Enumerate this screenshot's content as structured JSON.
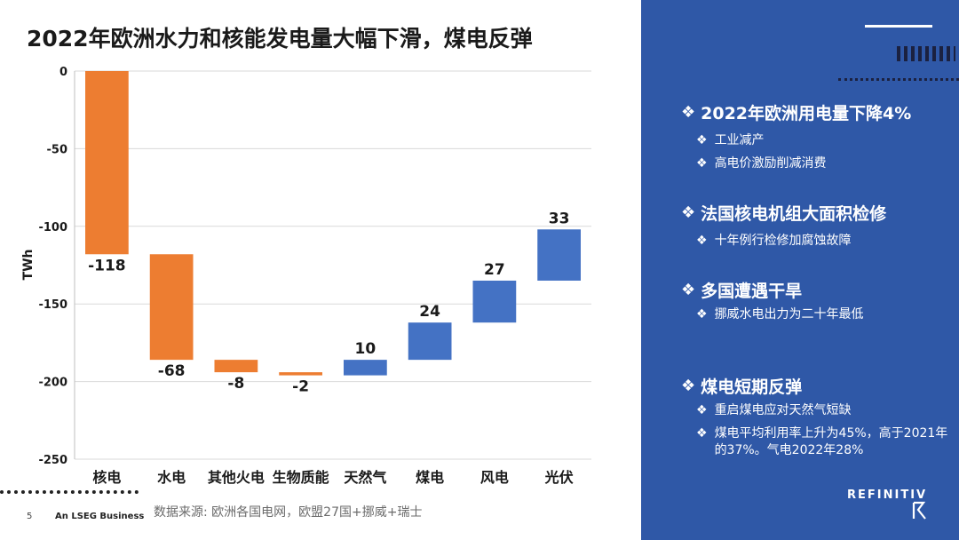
{
  "slide": {
    "title": "2022年欧洲水力和核能发电量大幅下滑，煤电反弹",
    "source": "数据来源: 欧洲各国电网，欧盟27国+挪威+瑞士",
    "page_number": "5",
    "footer_brand": "An LSEG Business",
    "logo_text": "REFINITIV"
  },
  "panel": {
    "points": [
      {
        "label": "2022年欧洲用电量下降4%",
        "subs": [
          "工业减产",
          "高电价激励削减消费"
        ]
      },
      {
        "label": "法国核电机组大面积检修",
        "subs": [
          "十年例行检修加腐蚀故障"
        ]
      },
      {
        "label": "多国遭遇干旱",
        "subs": [
          "挪威水电出力为二十年最低"
        ]
      },
      {
        "label": "煤电短期反弹",
        "subs": [
          "重启煤电应对天然气短缺",
          "煤电平均利用率上升为45%，高于2021年的37%。气电2022年28%"
        ]
      }
    ],
    "bullet": "❖",
    "colors": {
      "background": "#2f58a7",
      "text": "#ffffff"
    }
  },
  "chart_data": {
    "type": "bar",
    "subtype": "waterfall",
    "categories": [
      "核电",
      "水电",
      "其他火电",
      "生物质能",
      "天然气",
      "煤电",
      "风电",
      "光伏"
    ],
    "values": [
      -118,
      -68,
      -8,
      -2,
      10,
      24,
      27,
      33
    ],
    "data_labels": [
      "-118",
      "-68",
      "-8",
      "-2",
      "10",
      "24",
      "27",
      "33"
    ],
    "ylabel": "TWh",
    "ylim": [
      -250,
      0
    ],
    "yticks": [
      0,
      -50,
      -100,
      -150,
      -200,
      -250
    ],
    "grid": true,
    "colors": {
      "decrease": "#ed7d31",
      "increase": "#4472c4"
    }
  }
}
